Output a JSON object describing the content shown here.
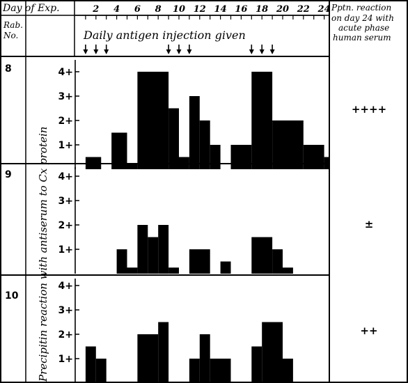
{
  "header": {
    "day_label": "Day of Exp.",
    "rab_label_1": "Rab.",
    "rab_label_2": "No.",
    "pptn_lines": [
      "Pptn. reaction",
      "on day 24 with",
      "acute phase",
      "human serum"
    ]
  },
  "annotation": "Daily antigen injection given",
  "y_axis_label": "Precipitin reaction with antiserum to Cx protein",
  "chart_data": {
    "type": "bar",
    "xlabel": "Day of Exp.",
    "ylabel": "Precipitin reaction with antiserum to Cx protein",
    "x_ticks": [
      2,
      4,
      6,
      8,
      10,
      12,
      14,
      16,
      18,
      20,
      22,
      24
    ],
    "xlim": [
      0,
      24
    ],
    "y_ticks": [
      "1+",
      "2+",
      "3+",
      "4+"
    ],
    "ylim": [
      0,
      4
    ],
    "injection_days": [
      1,
      2,
      3,
      9,
      10,
      11,
      17,
      18,
      19
    ],
    "panels": [
      {
        "rabbit": "8",
        "reaction": "++++",
        "bars": [
          {
            "x0": 1.0,
            "x1": 2.5,
            "value": 0.5
          },
          {
            "x0": 3.5,
            "x1": 5.0,
            "value": 1.5
          },
          {
            "x0": 5.0,
            "x1": 6.0,
            "value": 0.25
          },
          {
            "x0": 6.0,
            "x1": 9.0,
            "value": 4.0
          },
          {
            "x0": 9.0,
            "x1": 10.0,
            "value": 2.5
          },
          {
            "x0": 10.0,
            "x1": 11.0,
            "value": 0.5
          },
          {
            "x0": 11.0,
            "x1": 12.0,
            "value": 3.0
          },
          {
            "x0": 12.0,
            "x1": 13.0,
            "value": 2.0
          },
          {
            "x0": 13.0,
            "x1": 14.0,
            "value": 1.0
          },
          {
            "x0": 15.0,
            "x1": 17.0,
            "value": 1.0
          },
          {
            "x0": 17.0,
            "x1": 19.0,
            "value": 4.0
          },
          {
            "x0": 19.0,
            "x1": 22.0,
            "value": 2.0
          },
          {
            "x0": 22.0,
            "x1": 24.0,
            "value": 1.0
          },
          {
            "x0": 24.0,
            "x1": 25.0,
            "value": 0.5
          }
        ]
      },
      {
        "rabbit": "9",
        "reaction": "±",
        "bars": [
          {
            "x0": 4.0,
            "x1": 5.0,
            "value": 1.0
          },
          {
            "x0": 5.0,
            "x1": 6.0,
            "value": 0.25
          },
          {
            "x0": 6.0,
            "x1": 7.0,
            "value": 2.0
          },
          {
            "x0": 7.0,
            "x1": 8.0,
            "value": 1.5
          },
          {
            "x0": 8.0,
            "x1": 9.0,
            "value": 2.0
          },
          {
            "x0": 9.0,
            "x1": 10.0,
            "value": 0.25
          },
          {
            "x0": 11.0,
            "x1": 13.0,
            "value": 1.0
          },
          {
            "x0": 14.0,
            "x1": 15.0,
            "value": 0.5
          },
          {
            "x0": 17.0,
            "x1": 19.0,
            "value": 1.5
          },
          {
            "x0": 19.0,
            "x1": 20.0,
            "value": 1.0
          },
          {
            "x0": 20.0,
            "x1": 21.0,
            "value": 0.25
          }
        ]
      },
      {
        "rabbit": "10",
        "reaction": "++",
        "bars": [
          {
            "x0": 1.0,
            "x1": 2.0,
            "value": 1.5
          },
          {
            "x0": 2.0,
            "x1": 3.0,
            "value": 1.0
          },
          {
            "x0": 6.0,
            "x1": 8.0,
            "value": 2.0
          },
          {
            "x0": 8.0,
            "x1": 9.0,
            "value": 2.5
          },
          {
            "x0": 11.0,
            "x1": 12.0,
            "value": 1.0
          },
          {
            "x0": 12.0,
            "x1": 13.0,
            "value": 2.0
          },
          {
            "x0": 13.0,
            "x1": 15.0,
            "value": 1.0
          },
          {
            "x0": 17.0,
            "x1": 18.0,
            "value": 1.5
          },
          {
            "x0": 18.0,
            "x1": 20.0,
            "value": 2.5
          },
          {
            "x0": 20.0,
            "x1": 21.0,
            "value": 1.0
          }
        ]
      }
    ]
  }
}
